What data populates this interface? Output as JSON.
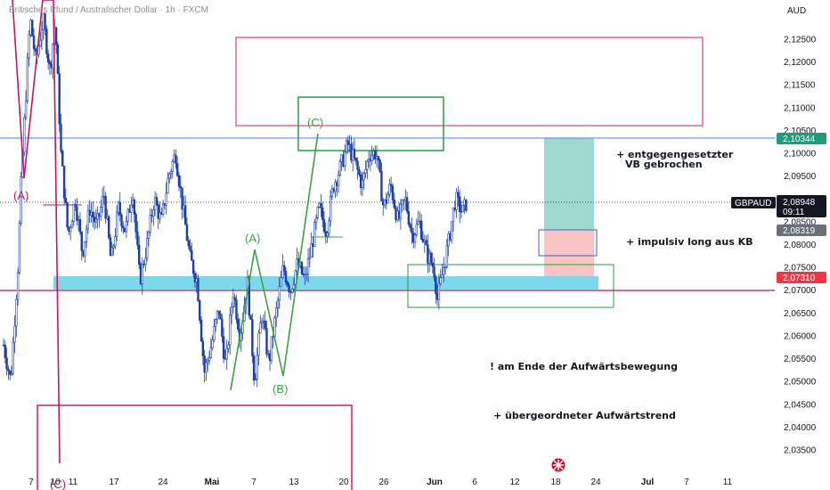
{
  "header": {
    "title": "Britisches Pfund / Australischer Dollar · 1h · FXCM",
    "currency": "AUD"
  },
  "colors": {
    "candle": "#1a3fa8",
    "resistance_line": "#4f7ff0",
    "support_line": "#c2185b",
    "support_zone": "#7fd8ea",
    "top_box": "#d81b60",
    "green_box": "#2e9e3e",
    "target_zone": "#9fd8cf",
    "stop_zone": "#f9c4c4",
    "entry_box": "#3d5ccc",
    "wave_green": "#3aa441",
    "wave_magenta": "#c2185b",
    "tag_blue": "#1e9c7c",
    "tag_dark": "#131722",
    "tag_grey": "#6b6f7a",
    "tag_red": "#f23645"
  },
  "tags": {
    "upper": "2,10344",
    "symbol": "GBPAUD",
    "price": "2,08948",
    "countdown": "09:11",
    "entry": "2,08319",
    "lower": "2,07310"
  },
  "annotations": {
    "note1_line1": "+ entgegengesetzter",
    "note1_line2": "VB gebrochen",
    "note2": "+ impulsiv long aus KB",
    "note3": "! am Ende der Aufwärtsbewegung",
    "note4": "+ übergeordneter Aufwärtstrend"
  },
  "wave_labels": {
    "A_green": "(A)",
    "B_green": "(B)",
    "C_green": "(C)",
    "A_magenta": "(A)",
    "C_magenta": "(C)"
  },
  "chart_data": {
    "type": "candlestick",
    "title": "Britisches Pfund / Australischer Dollar · 1h · FXCM",
    "ylabel": "AUD",
    "ylim": [
      2.031,
      2.1295
    ],
    "y_ticks": [
      "2,12500",
      "2,12000",
      "2,11500",
      "2,11000",
      "2,10500",
      "2,10000",
      "2,09500",
      "2,09000",
      "2,08500",
      "2,08000",
      "2,07500",
      "2,07000",
      "2,06500",
      "2,06000",
      "2,05500",
      "2,05000",
      "2,04500",
      "2,04000",
      "2,03500"
    ],
    "x_ticks": [
      "7",
      "10",
      "11",
      "17",
      "24",
      "Mai",
      "7",
      "13",
      "20",
      "26",
      "Jun",
      "6",
      "12",
      "18",
      "24",
      "Jul",
      "7",
      "11"
    ],
    "levels": {
      "resistance": 2.10344,
      "last_price": 2.08948,
      "entry": 2.08319,
      "support": 2.0731
    },
    "price_path": [
      [
        0,
        2.058
      ],
      [
        0.01,
        2.05
      ],
      [
        0.02,
        2.075
      ],
      [
        0.025,
        2.095
      ],
      [
        0.03,
        2.11
      ],
      [
        0.037,
        2.1295
      ],
      [
        0.045,
        2.12
      ],
      [
        0.055,
        2.1295
      ],
      [
        0.065,
        2.118
      ],
      [
        0.072,
        2.129
      ],
      [
        0.08,
        2.1
      ],
      [
        0.09,
        2.082
      ],
      [
        0.1,
        2.09
      ],
      [
        0.11,
        2.078
      ],
      [
        0.12,
        2.088
      ],
      [
        0.13,
        2.084
      ],
      [
        0.14,
        2.091
      ],
      [
        0.15,
        2.076
      ],
      [
        0.16,
        2.088
      ],
      [
        0.17,
        2.083
      ],
      [
        0.18,
        2.092
      ],
      [
        0.19,
        2.072
      ],
      [
        0.2,
        2.08
      ],
      [
        0.21,
        2.09
      ],
      [
        0.22,
        2.085
      ],
      [
        0.23,
        2.095
      ],
      [
        0.24,
        2.1
      ],
      [
        0.25,
        2.088
      ],
      [
        0.26,
        2.077
      ],
      [
        0.27,
        2.072
      ],
      [
        0.28,
        2.052
      ],
      [
        0.29,
        2.058
      ],
      [
        0.3,
        2.066
      ],
      [
        0.31,
        2.053
      ],
      [
        0.32,
        2.07
      ],
      [
        0.33,
        2.06
      ],
      [
        0.34,
        2.072
      ],
      [
        0.35,
        2.05
      ],
      [
        0.36,
        2.065
      ],
      [
        0.37,
        2.054
      ],
      [
        0.38,
        2.065
      ],
      [
        0.39,
        2.075
      ],
      [
        0.4,
        2.07
      ],
      [
        0.41,
        2.076
      ],
      [
        0.42,
        2.072
      ],
      [
        0.43,
        2.08
      ],
      [
        0.44,
        2.088
      ],
      [
        0.45,
        2.083
      ],
      [
        0.46,
        2.093
      ],
      [
        0.47,
        2.097
      ],
      [
        0.48,
        2.102
      ],
      [
        0.49,
        2.098
      ],
      [
        0.5,
        2.093
      ],
      [
        0.51,
        2.1
      ],
      [
        0.52,
        2.1
      ],
      [
        0.53,
        2.088
      ],
      [
        0.54,
        2.093
      ],
      [
        0.55,
        2.085
      ],
      [
        0.56,
        2.09
      ],
      [
        0.57,
        2.082
      ],
      [
        0.58,
        2.085
      ],
      [
        0.59,
        2.078
      ],
      [
        0.6,
        2.075
      ],
      [
        0.605,
        2.068
      ],
      [
        0.61,
        2.072
      ],
      [
        0.62,
        2.08
      ],
      [
        0.63,
        2.09
      ],
      [
        0.64,
        2.087
      ],
      [
        0.645,
        2.089
      ]
    ]
  }
}
